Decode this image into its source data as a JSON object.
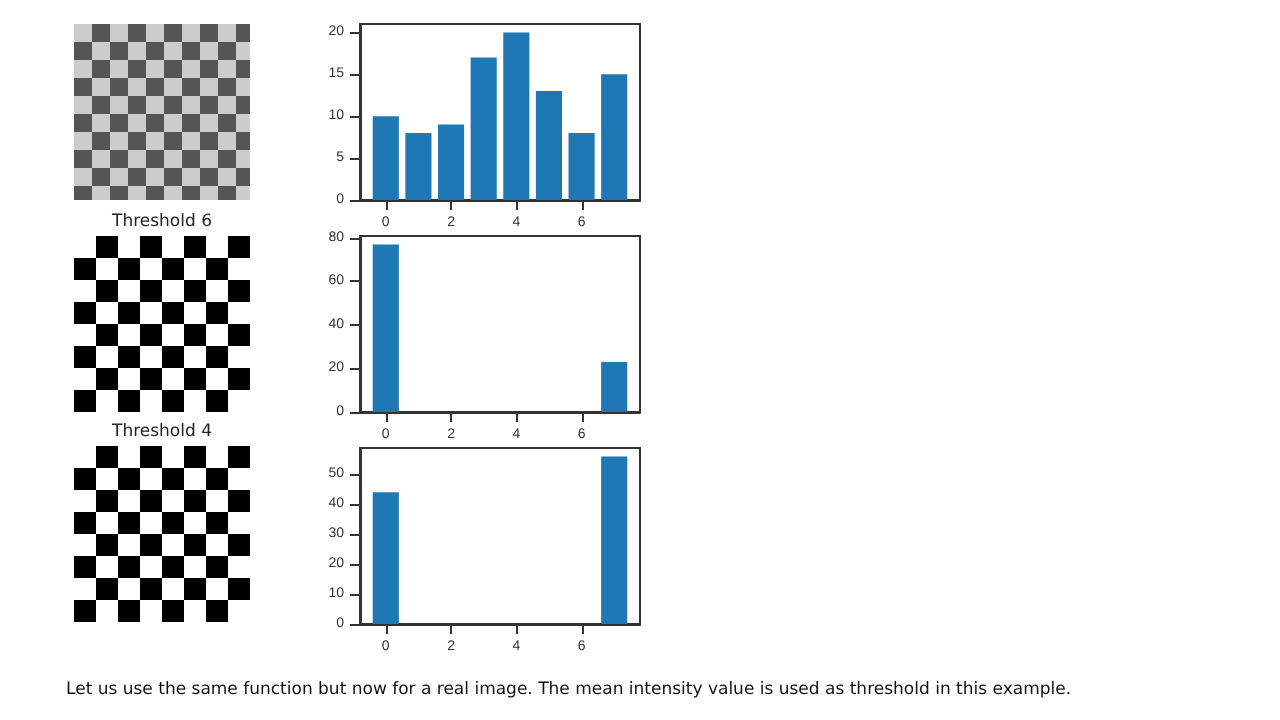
{
  "chart_data": [
    {
      "type": "bar",
      "x": [
        0,
        1,
        2,
        3,
        4,
        5,
        6,
        7
      ],
      "values": [
        10,
        8,
        9,
        17,
        20,
        13,
        8,
        15
      ],
      "color": "#1f77b4",
      "xlim": [
        -0.79,
        7.79
      ],
      "xticks": [
        0,
        2,
        4,
        6
      ],
      "ylim": [
        0,
        21
      ],
      "yticks": [
        0,
        5,
        10,
        15,
        20
      ],
      "grid": false
    },
    {
      "type": "other",
      "title": "Threshold 6"
    },
    {
      "type": "bar",
      "x": [
        0,
        1,
        2,
        3,
        4,
        5,
        6,
        7
      ],
      "values": [
        77,
        0,
        0,
        0,
        0,
        0,
        0,
        23
      ],
      "color": "#1f77b4",
      "xlim": [
        -0.79,
        7.79
      ],
      "xticks": [
        0,
        2,
        4,
        6
      ],
      "ylim": [
        0,
        80.85
      ],
      "yticks": [
        0,
        20,
        40,
        60,
        80
      ],
      "grid": false
    },
    {
      "type": "other",
      "title": "Threshold 4"
    },
    {
      "type": "bar",
      "x": [
        0,
        1,
        2,
        3,
        4,
        5,
        6,
        7
      ],
      "values": [
        44,
        0,
        0,
        0,
        0,
        0,
        0,
        56
      ],
      "color": "#1f77b4",
      "xlim": [
        -0.79,
        7.79
      ],
      "xticks": [
        0,
        2,
        4,
        6
      ],
      "ylim": [
        0,
        58.8
      ],
      "yticks": [
        0,
        10,
        20,
        30,
        40,
        50
      ],
      "grid": false
    },
    {
      "type": "other",
      "annotations": [
        "Let us use the same function but now for a real image. The mean intensity value is used as threshold in this example."
      ]
    }
  ]
}
